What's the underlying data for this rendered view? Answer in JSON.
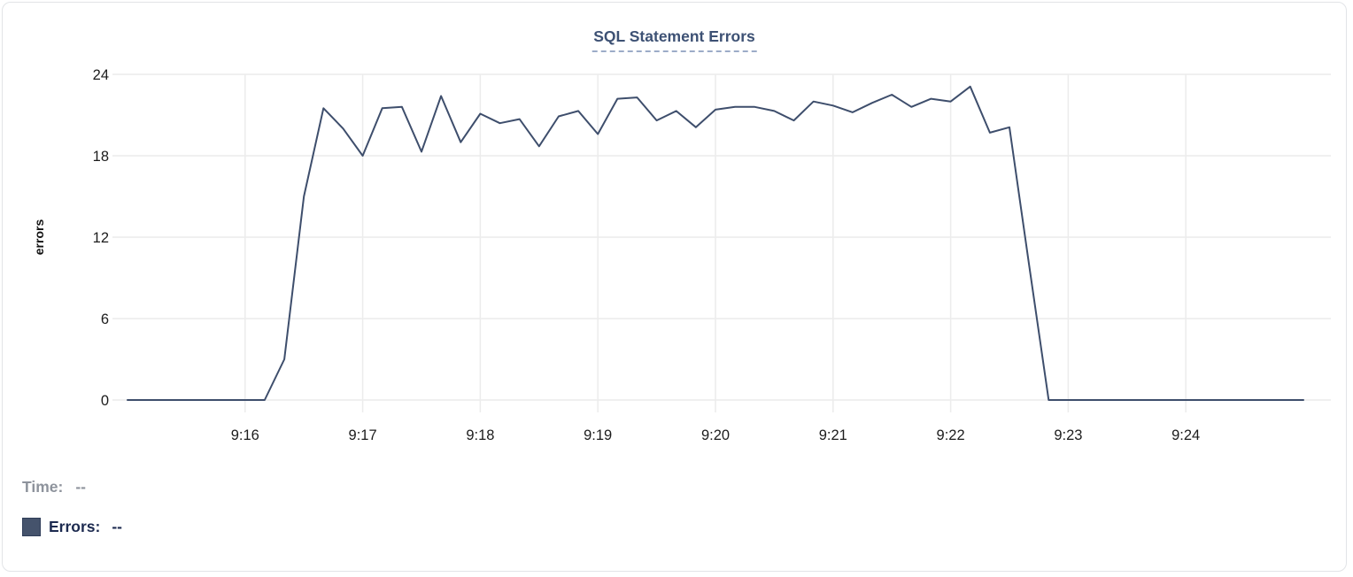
{
  "legend": {
    "time_label": "Time:",
    "time_value": "--",
    "series_label": "Errors:",
    "series_value": "--",
    "swatch_color": "#45536c"
  },
  "chart_data": {
    "type": "line",
    "title": "SQL Statement Errors",
    "xlabel": "",
    "ylabel": "errors",
    "series_name": "Errors",
    "line_color": "#3e4e6c",
    "grid": "on",
    "ylim": [
      0,
      24
    ],
    "y_ticks": [
      0,
      6,
      12,
      18,
      24
    ],
    "x_tick_labels": [
      "9:16",
      "9:17",
      "9:18",
      "9:19",
      "9:20",
      "9:21",
      "9:22",
      "9:23",
      "9:24"
    ],
    "x_start_time": "9:15:00",
    "x_end_time": "9:25:00",
    "interval_seconds": 10,
    "values": [
      0,
      0,
      0,
      0,
      0,
      0,
      0,
      0,
      3,
      15,
      21.5,
      20,
      18,
      21.5,
      21.6,
      18.3,
      22.4,
      19,
      21.1,
      20.4,
      20.7,
      18.7,
      20.9,
      21.3,
      19.6,
      22.2,
      22.3,
      20.6,
      21.3,
      20.1,
      21.4,
      21.6,
      21.6,
      21.3,
      20.6,
      22.0,
      21.7,
      21.2,
      21.9,
      22.5,
      21.6,
      22.2,
      22.0,
      23.1,
      19.7,
      20.1,
      10,
      0,
      0,
      0,
      0,
      0,
      0,
      0,
      0,
      0,
      0,
      0,
      0,
      0,
      0
    ]
  }
}
